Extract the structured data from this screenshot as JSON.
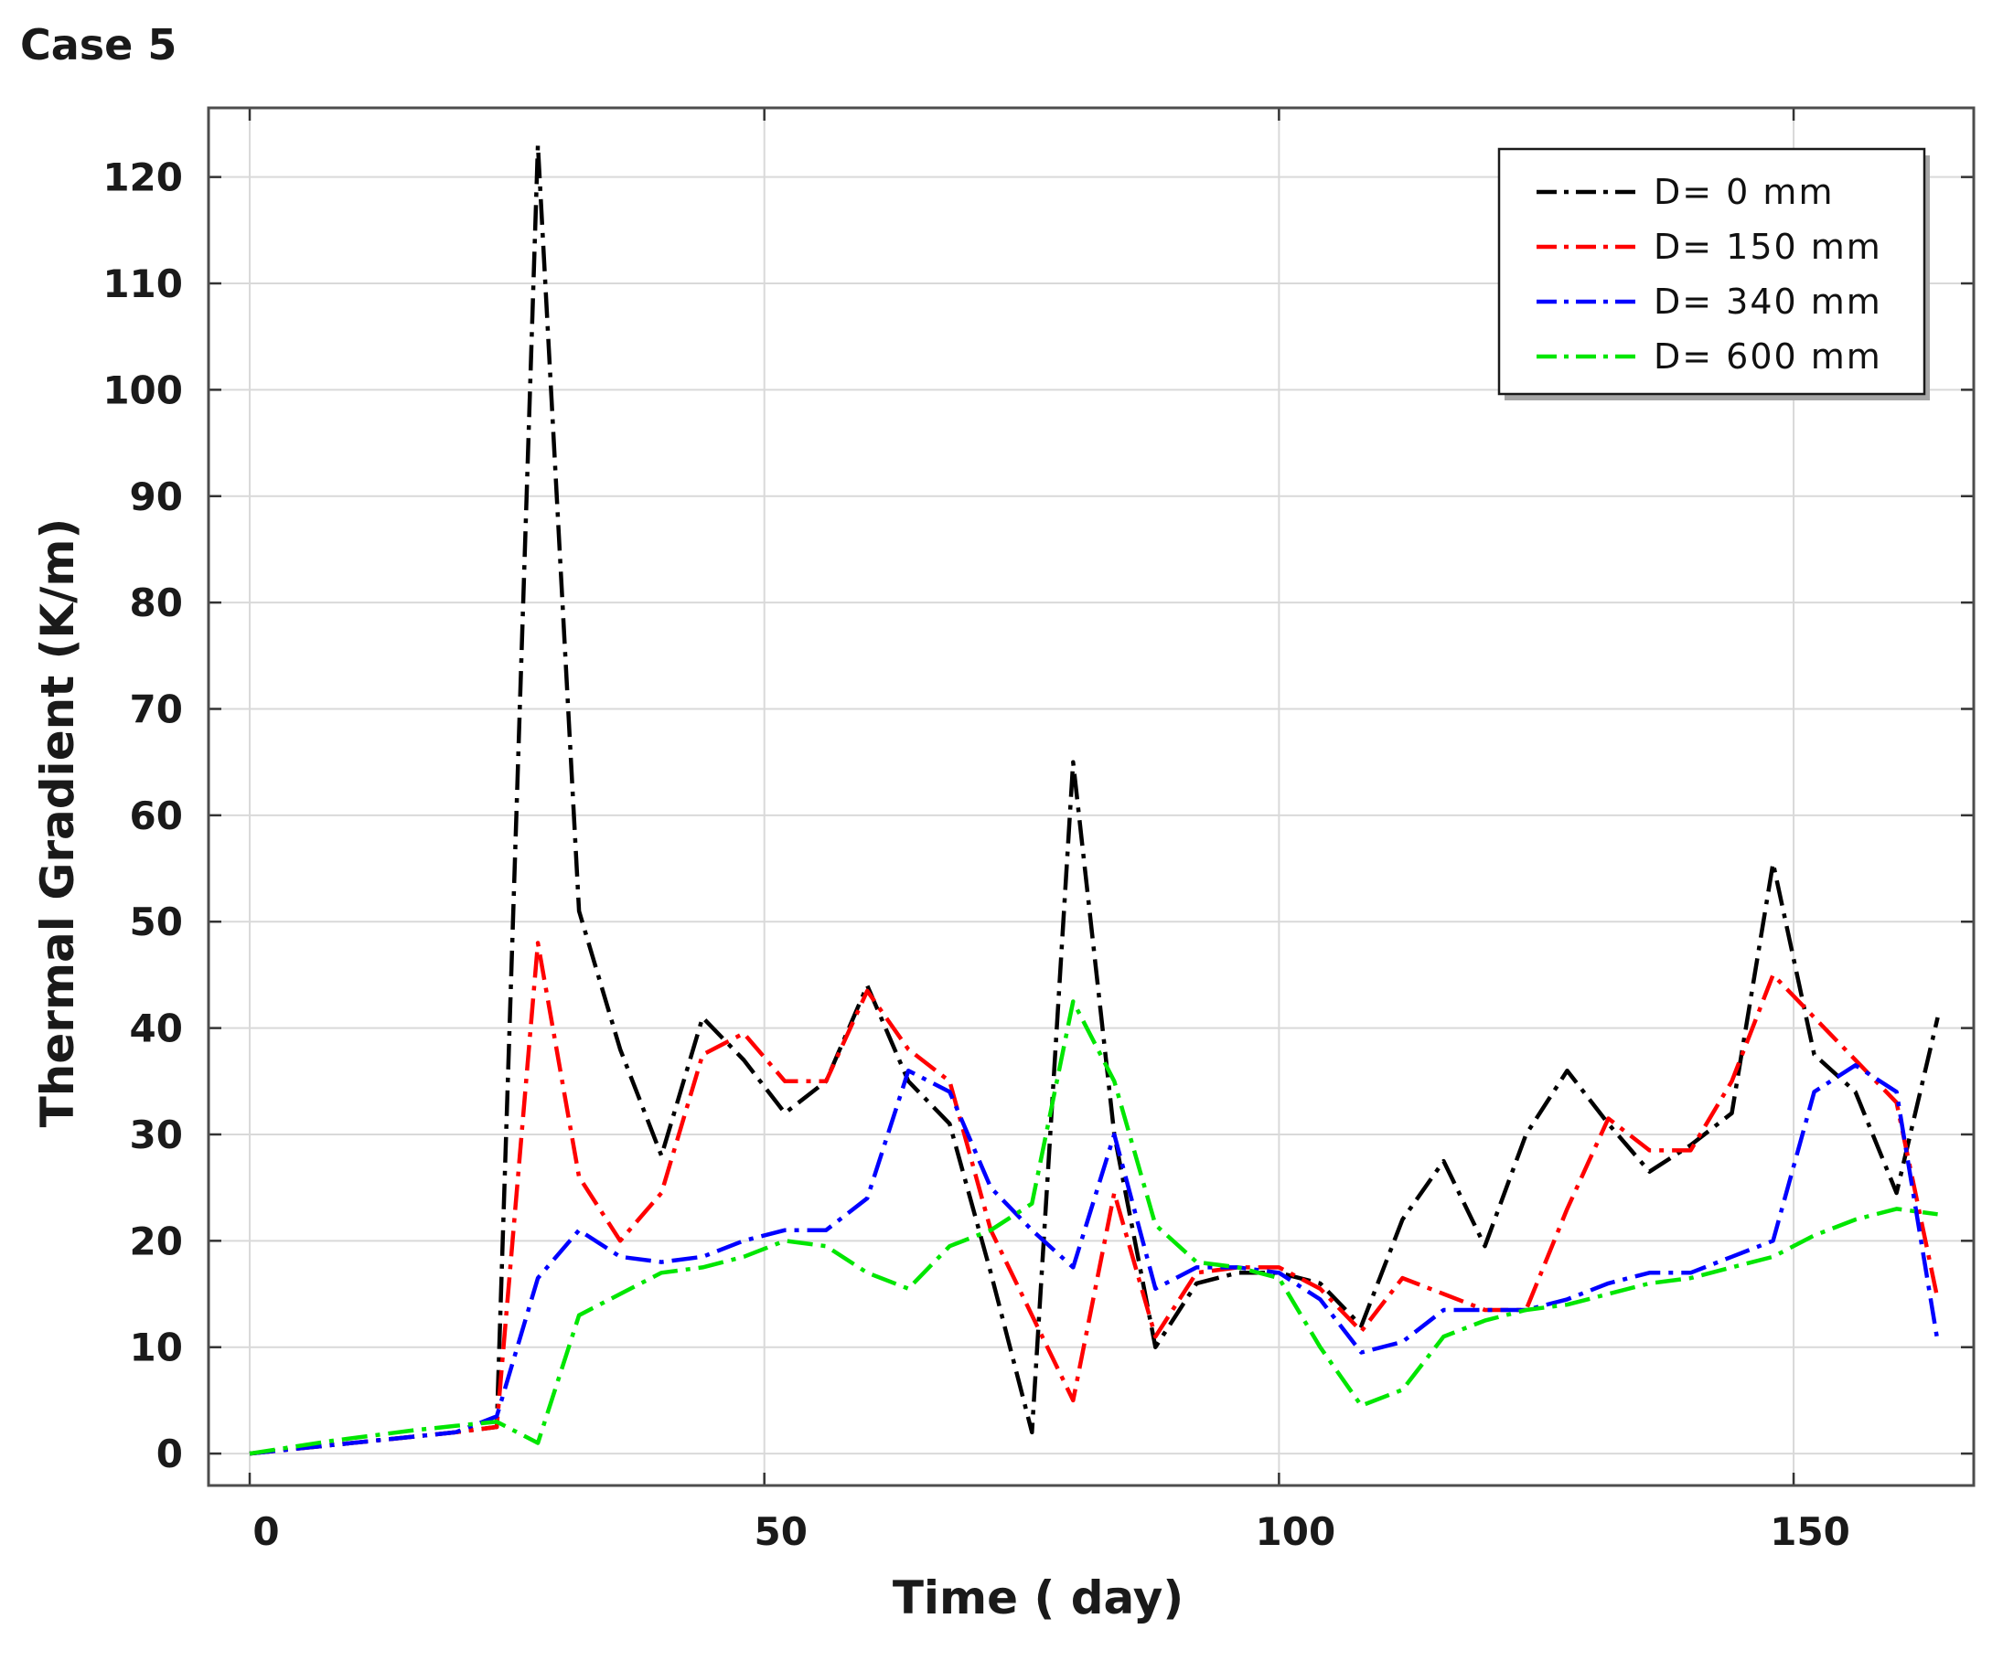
{
  "chart_data": {
    "type": "line",
    "title": "Case 5",
    "xlabel": "Time ( day)",
    "ylabel": "Thermal Gradient (K/m)",
    "xlim": [
      -4,
      167.5
    ],
    "ylim": [
      -3,
      126.5
    ],
    "xticks": [
      0,
      50,
      100,
      150
    ],
    "yticks": [
      0,
      10,
      20,
      30,
      40,
      50,
      60,
      70,
      80,
      90,
      100,
      110,
      120
    ],
    "grid": true,
    "legend_position": "top-right",
    "series": [
      {
        "name": "D= 0 mm",
        "color": "#000000",
        "points": [
          [
            0,
            0
          ],
          [
            4,
            0.4
          ],
          [
            8,
            0.8
          ],
          [
            12,
            1.2
          ],
          [
            16,
            1.6
          ],
          [
            20,
            2
          ],
          [
            24,
            2.5
          ],
          [
            28,
            123
          ],
          [
            32,
            51
          ],
          [
            36,
            38
          ],
          [
            40,
            28
          ],
          [
            44,
            41
          ],
          [
            48,
            37
          ],
          [
            52,
            32
          ],
          [
            56,
            35
          ],
          [
            60,
            44
          ],
          [
            64,
            35
          ],
          [
            68,
            31
          ],
          [
            72,
            17
          ],
          [
            76,
            2
          ],
          [
            80,
            65
          ],
          [
            84,
            30
          ],
          [
            88,
            10
          ],
          [
            92,
            16
          ],
          [
            96,
            17
          ],
          [
            100,
            17
          ],
          [
            104,
            16
          ],
          [
            108,
            12
          ],
          [
            112,
            22
          ],
          [
            116,
            27.5
          ],
          [
            120,
            19.5
          ],
          [
            124,
            30
          ],
          [
            128,
            36
          ],
          [
            132,
            31
          ],
          [
            136,
            26.5
          ],
          [
            140,
            29
          ],
          [
            144,
            32
          ],
          [
            148,
            55.5
          ],
          [
            152,
            37.5
          ],
          [
            156,
            34
          ],
          [
            160,
            24.5
          ],
          [
            164,
            41
          ]
        ]
      },
      {
        "name": "D= 150 mm",
        "color": "#ff0000",
        "points": [
          [
            0,
            0
          ],
          [
            4,
            0.4
          ],
          [
            8,
            0.8
          ],
          [
            12,
            1.2
          ],
          [
            16,
            1.6
          ],
          [
            20,
            2
          ],
          [
            24,
            2.5
          ],
          [
            28,
            48
          ],
          [
            32,
            26
          ],
          [
            36,
            20
          ],
          [
            40,
            24.5
          ],
          [
            44,
            37.5
          ],
          [
            48,
            39.5
          ],
          [
            52,
            35
          ],
          [
            56,
            35
          ],
          [
            60,
            43.5
          ],
          [
            64,
            38
          ],
          [
            68,
            35
          ],
          [
            72,
            21
          ],
          [
            76,
            13
          ],
          [
            80,
            5
          ],
          [
            84,
            24.5
          ],
          [
            88,
            11
          ],
          [
            92,
            17
          ],
          [
            96,
            17.5
          ],
          [
            100,
            17.5
          ],
          [
            104,
            15.5
          ],
          [
            108,
            11.5
          ],
          [
            112,
            16.5
          ],
          [
            116,
            15
          ],
          [
            120,
            13.5
          ],
          [
            124,
            13.5
          ],
          [
            128,
            23
          ],
          [
            132,
            31.5
          ],
          [
            136,
            28.5
          ],
          [
            140,
            28.5
          ],
          [
            144,
            35
          ],
          [
            148,
            45
          ],
          [
            152,
            41
          ],
          [
            156,
            37
          ],
          [
            160,
            33
          ],
          [
            164,
            14.5
          ]
        ]
      },
      {
        "name": "D= 340 mm",
        "color": "#0000ff",
        "points": [
          [
            0,
            0
          ],
          [
            4,
            0.4
          ],
          [
            8,
            0.8
          ],
          [
            12,
            1.2
          ],
          [
            16,
            1.6
          ],
          [
            20,
            2
          ],
          [
            24,
            3.5
          ],
          [
            28,
            16.5
          ],
          [
            32,
            21
          ],
          [
            36,
            18.5
          ],
          [
            40,
            18
          ],
          [
            44,
            18.5
          ],
          [
            48,
            20
          ],
          [
            52,
            21
          ],
          [
            56,
            21
          ],
          [
            60,
            24
          ],
          [
            64,
            36
          ],
          [
            68,
            34
          ],
          [
            72,
            25
          ],
          [
            76,
            21
          ],
          [
            80,
            17.5
          ],
          [
            84,
            30
          ],
          [
            88,
            15.5
          ],
          [
            92,
            17.5
          ],
          [
            96,
            17.5
          ],
          [
            100,
            17
          ],
          [
            104,
            14.5
          ],
          [
            108,
            9.5
          ],
          [
            112,
            10.5
          ],
          [
            116,
            13.5
          ],
          [
            120,
            13.5
          ],
          [
            124,
            13.5
          ],
          [
            128,
            14.5
          ],
          [
            132,
            16
          ],
          [
            136,
            17
          ],
          [
            140,
            17
          ],
          [
            144,
            18.5
          ],
          [
            148,
            20
          ],
          [
            152,
            34
          ],
          [
            156,
            36.5
          ],
          [
            160,
            34
          ],
          [
            164,
            10.5
          ]
        ]
      },
      {
        "name": "D= 600 mm",
        "color": "#00e600",
        "points": [
          [
            0,
            0
          ],
          [
            4,
            0.6
          ],
          [
            8,
            1.2
          ],
          [
            12,
            1.7
          ],
          [
            16,
            2.2
          ],
          [
            20,
            2.6
          ],
          [
            24,
            3
          ],
          [
            28,
            1
          ],
          [
            32,
            13
          ],
          [
            36,
            15
          ],
          [
            40,
            17
          ],
          [
            44,
            17.5
          ],
          [
            48,
            18.5
          ],
          [
            52,
            20
          ],
          [
            56,
            19.5
          ],
          [
            60,
            17
          ],
          [
            64,
            15.5
          ],
          [
            68,
            19.5
          ],
          [
            72,
            21
          ],
          [
            76,
            23.5
          ],
          [
            80,
            42.5
          ],
          [
            84,
            35
          ],
          [
            88,
            21.5
          ],
          [
            92,
            18
          ],
          [
            96,
            17.5
          ],
          [
            100,
            16.5
          ],
          [
            104,
            10
          ],
          [
            108,
            4.5
          ],
          [
            112,
            6
          ],
          [
            116,
            11
          ],
          [
            120,
            12.5
          ],
          [
            124,
            13.5
          ],
          [
            128,
            14
          ],
          [
            132,
            15
          ],
          [
            136,
            16
          ],
          [
            140,
            16.5
          ],
          [
            144,
            17.5
          ],
          [
            148,
            18.5
          ],
          [
            152,
            20.5
          ],
          [
            156,
            22
          ],
          [
            160,
            23
          ],
          [
            164,
            22.5
          ]
        ]
      }
    ]
  }
}
